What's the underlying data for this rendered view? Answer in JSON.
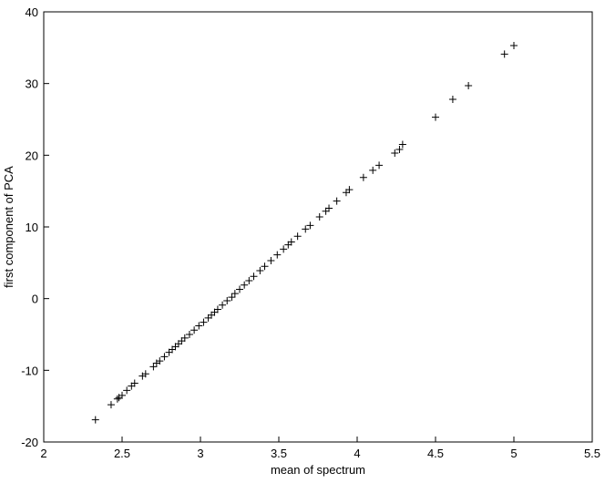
{
  "chart_data": {
    "type": "scatter",
    "xlabel": "mean of spectrum",
    "ylabel": "first component of PCA",
    "x": [
      2.33,
      2.43,
      2.47,
      2.48,
      2.5,
      2.53,
      2.56,
      2.58,
      2.63,
      2.65,
      2.7,
      2.72,
      2.74,
      2.77,
      2.8,
      2.82,
      2.84,
      2.86,
      2.88,
      2.9,
      2.93,
      2.96,
      2.99,
      3.02,
      3.05,
      3.07,
      3.09,
      3.11,
      3.14,
      3.17,
      3.2,
      3.22,
      3.25,
      3.28,
      3.31,
      3.34,
      3.38,
      3.41,
      3.45,
      3.49,
      3.53,
      3.56,
      3.58,
      3.62,
      3.67,
      3.7,
      3.76,
      3.8,
      3.82,
      3.87,
      3.93,
      3.95,
      4.04,
      4.1,
      4.14,
      4.24,
      4.27,
      4.29,
      4.5,
      4.61,
      4.71,
      4.94,
      5.0
    ],
    "values": [
      -16.9,
      -14.8,
      -14.0,
      -13.8,
      -13.5,
      -12.8,
      -12.2,
      -11.8,
      -10.8,
      -10.5,
      -9.5,
      -9.0,
      -8.7,
      -8.1,
      -7.5,
      -7.1,
      -6.7,
      -6.3,
      -5.9,
      -5.5,
      -5.0,
      -4.4,
      -3.8,
      -3.3,
      -2.7,
      -2.3,
      -1.9,
      -1.5,
      -0.9,
      -0.3,
      0.2,
      0.7,
      1.3,
      1.9,
      2.5,
      3.1,
      3.9,
      4.5,
      5.3,
      6.1,
      6.9,
      7.5,
      7.9,
      8.7,
      9.7,
      10.2,
      11.4,
      12.2,
      12.6,
      13.6,
      14.8,
      15.2,
      16.9,
      17.9,
      18.6,
      20.3,
      20.8,
      21.5,
      25.3,
      27.8,
      29.7,
      34.1,
      35.3
    ],
    "color": "#000000",
    "xlim": [
      2,
      5.5
    ],
    "xticks": [
      2,
      2.5,
      3,
      3.5,
      4,
      4.5,
      5,
      5.5
    ],
    "ylim": [
      -20,
      40
    ],
    "yticks": [
      -20,
      -10,
      0,
      10,
      20,
      30,
      40
    ]
  }
}
